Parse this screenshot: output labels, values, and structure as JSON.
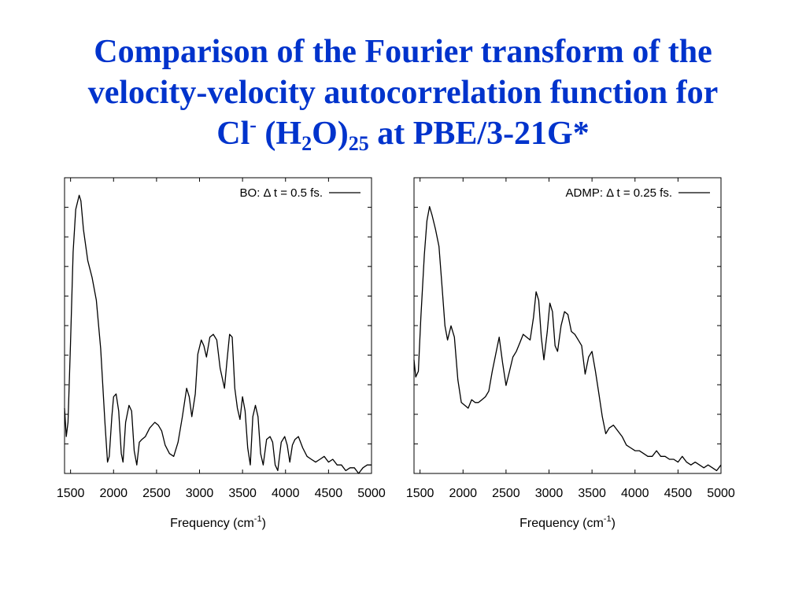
{
  "slide": {
    "title_line1": "Comparison of the Fourier transform of the",
    "title_line2": "velocity-velocity autocorrelation function for",
    "title_cl": "Cl",
    "title_cl_sup": "-",
    "title_mid": " (H",
    "title_h_sub": "2",
    "title_o": "O)",
    "title_n_sub": "25",
    "title_tail": " at PBE/3-21G*",
    "title_color": "#0033cc"
  },
  "chart_data": [
    {
      "type": "line",
      "legend": "BO: Δ t = 0.5 fs.",
      "legend_position": "top-right",
      "xlabel": "Frequency (cm",
      "xlabel_sup": "-1",
      "xlabel_close": ")",
      "ylabel": "",
      "xlim": [
        1430,
        5000
      ],
      "ylim": [
        0,
        1
      ],
      "grid": false,
      "xticks": [
        1500,
        2000,
        2500,
        3000,
        3500,
        4000,
        4500,
        5000
      ],
      "xtick_labels": [
        "1500",
        "2000",
        "2500",
        "3000",
        "3500",
        "4000",
        "4500",
        "5000"
      ],
      "yticks": [
        0.1,
        0.2,
        0.3,
        0.4,
        0.5,
        0.6,
        0.7,
        0.8,
        0.9
      ],
      "series": [
        {
          "line_color": "#000000",
          "x": [
            1430,
            1450,
            1470,
            1500,
            1530,
            1560,
            1600,
            1620,
            1650,
            1700,
            1750,
            1800,
            1850,
            1900,
            1930,
            1950,
            1980,
            2000,
            2030,
            2060,
            2090,
            2110,
            2140,
            2180,
            2210,
            2240,
            2270,
            2300,
            2330,
            2370,
            2420,
            2480,
            2520,
            2560,
            2600,
            2650,
            2700,
            2750,
            2800,
            2850,
            2880,
            2910,
            2950,
            2980,
            3020,
            3050,
            3080,
            3120,
            3160,
            3200,
            3240,
            3290,
            3320,
            3350,
            3380,
            3410,
            3440,
            3470,
            3500,
            3530,
            3560,
            3590,
            3620,
            3650,
            3680,
            3710,
            3740,
            3780,
            3820,
            3850,
            3880,
            3910,
            3950,
            3990,
            4020,
            4050,
            4080,
            4110,
            4150,
            4200,
            4250,
            4300,
            4350,
            4400,
            4450,
            4500,
            4550,
            4600,
            4650,
            4700,
            4750,
            4800,
            4850,
            4900,
            4950,
            5000
          ],
          "y": [
            0.23,
            0.13,
            0.18,
            0.46,
            0.78,
            0.93,
            0.98,
            0.96,
            0.86,
            0.75,
            0.69,
            0.61,
            0.44,
            0.18,
            0.04,
            0.06,
            0.2,
            0.27,
            0.28,
            0.22,
            0.07,
            0.04,
            0.18,
            0.24,
            0.22,
            0.08,
            0.03,
            0.11,
            0.12,
            0.13,
            0.16,
            0.18,
            0.17,
            0.15,
            0.1,
            0.07,
            0.06,
            0.11,
            0.2,
            0.3,
            0.27,
            0.2,
            0.28,
            0.42,
            0.47,
            0.45,
            0.41,
            0.48,
            0.49,
            0.47,
            0.37,
            0.3,
            0.4,
            0.49,
            0.48,
            0.3,
            0.23,
            0.19,
            0.27,
            0.22,
            0.09,
            0.03,
            0.2,
            0.24,
            0.2,
            0.07,
            0.03,
            0.12,
            0.13,
            0.11,
            0.03,
            0.01,
            0.11,
            0.13,
            0.1,
            0.04,
            0.1,
            0.12,
            0.13,
            0.09,
            0.06,
            0.05,
            0.04,
            0.05,
            0.06,
            0.04,
            0.05,
            0.03,
            0.03,
            0.01,
            0.02,
            0.02,
            0.0,
            0.02,
            0.03,
            0.03
          ]
        }
      ]
    },
    {
      "type": "line",
      "legend": "ADMP: Δ t = 0.25 fs.",
      "legend_position": "top-right",
      "xlabel": "Frequency (cm",
      "xlabel_sup": "-1",
      "xlabel_close": ")",
      "ylabel": "",
      "xlim": [
        1430,
        5000
      ],
      "ylim": [
        0,
        1
      ],
      "grid": false,
      "xticks": [
        1500,
        2000,
        2500,
        3000,
        3500,
        4000,
        4500,
        5000
      ],
      "xtick_labels": [
        "1500",
        "2000",
        "2500",
        "3000",
        "3500",
        "4000",
        "4500",
        "5000"
      ],
      "yticks": [
        0.1,
        0.2,
        0.3,
        0.4,
        0.5,
        0.6,
        0.7,
        0.8,
        0.9
      ],
      "series": [
        {
          "line_color": "#000000",
          "x": [
            1430,
            1450,
            1480,
            1510,
            1550,
            1580,
            1610,
            1640,
            1680,
            1720,
            1760,
            1790,
            1820,
            1860,
            1900,
            1940,
            1980,
            2020,
            2060,
            2100,
            2140,
            2180,
            2220,
            2260,
            2300,
            2340,
            2380,
            2420,
            2460,
            2500,
            2540,
            2580,
            2620,
            2660,
            2700,
            2740,
            2780,
            2820,
            2850,
            2880,
            2910,
            2940,
            2980,
            3010,
            3040,
            3070,
            3100,
            3140,
            3180,
            3220,
            3260,
            3300,
            3340,
            3380,
            3420,
            3460,
            3500,
            3540,
            3580,
            3620,
            3660,
            3700,
            3750,
            3800,
            3850,
            3900,
            3950,
            4000,
            4050,
            4100,
            4150,
            4200,
            4250,
            4300,
            4350,
            4400,
            4450,
            4500,
            4550,
            4600,
            4650,
            4700,
            4750,
            4800,
            4850,
            4900,
            4950,
            5000
          ],
          "y": [
            0.4,
            0.34,
            0.36,
            0.55,
            0.77,
            0.89,
            0.94,
            0.91,
            0.86,
            0.8,
            0.64,
            0.52,
            0.47,
            0.52,
            0.48,
            0.33,
            0.25,
            0.24,
            0.23,
            0.26,
            0.25,
            0.25,
            0.26,
            0.27,
            0.29,
            0.36,
            0.42,
            0.48,
            0.39,
            0.31,
            0.36,
            0.41,
            0.43,
            0.46,
            0.49,
            0.48,
            0.47,
            0.55,
            0.64,
            0.61,
            0.48,
            0.4,
            0.5,
            0.6,
            0.57,
            0.45,
            0.43,
            0.52,
            0.57,
            0.56,
            0.5,
            0.49,
            0.47,
            0.45,
            0.35,
            0.41,
            0.43,
            0.36,
            0.28,
            0.2,
            0.14,
            0.16,
            0.17,
            0.15,
            0.13,
            0.1,
            0.09,
            0.08,
            0.08,
            0.07,
            0.06,
            0.06,
            0.08,
            0.06,
            0.06,
            0.05,
            0.05,
            0.04,
            0.06,
            0.04,
            0.03,
            0.04,
            0.03,
            0.02,
            0.03,
            0.02,
            0.01,
            0.03
          ]
        }
      ]
    }
  ]
}
